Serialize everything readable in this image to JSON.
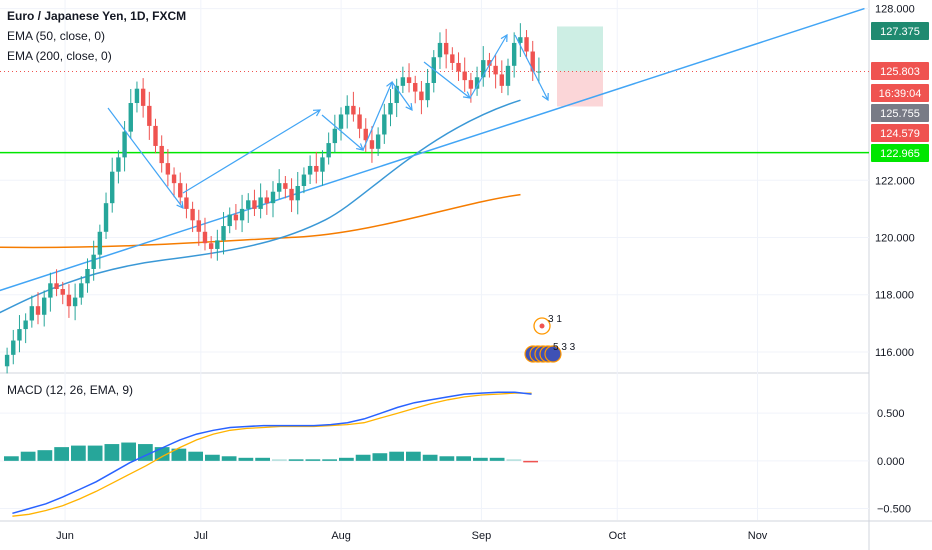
{
  "header": {
    "title": "Euro / Japanese Yen, 1D, FXCM",
    "ema50_label": "EMA (50, close, 0)",
    "ema200_label": "EMA (200, close, 0)",
    "macd_label": "MACD (12, 26, EMA, 9)"
  },
  "colors": {
    "up": "#26a69a",
    "down": "#ef5350",
    "ema50": "#3a98d6",
    "ema200": "#f57c00",
    "trendline": "#42a5f5",
    "support": "#00e600",
    "macd": "#2962ff",
    "signal": "#ffb300"
  },
  "price_axis": {
    "ticks": [
      "128.000",
      "122.000",
      "120.000",
      "118.000",
      "116.000"
    ],
    "badges": [
      {
        "label": "127.375",
        "color": "#1f8a70"
      },
      {
        "label": "125.803",
        "color": "#ef5350"
      },
      {
        "label": "16:39:04",
        "color": "#ef5350"
      },
      {
        "label": "125.755",
        "color": "#787b86"
      },
      {
        "label": "124.579",
        "color": "#ef5350"
      },
      {
        "label": "122.965",
        "color": "#00e600"
      }
    ]
  },
  "macd_axis": {
    "ticks": [
      "0.500",
      "0.000",
      "−0.500"
    ]
  },
  "time_axis": {
    "labels": [
      "Jun",
      "Jul",
      "Aug",
      "Sep",
      "Oct",
      "Nov"
    ]
  },
  "events": {
    "top_count": "3 1",
    "bottom_count": "5 3 3"
  },
  "chart_data": {
    "type": "candlestick",
    "symbol": "Euro / Japanese Yen",
    "interval": "1D",
    "source": "FXCM",
    "x_range": [
      "2021-05-11",
      "2021-11-19"
    ],
    "ylim": [
      115.3,
      128.3
    ],
    "close": [
      115.9,
      116.4,
      116.8,
      117.1,
      117.6,
      117.3,
      117.9,
      118.4,
      118.2,
      118.0,
      117.6,
      117.9,
      118.4,
      118.9,
      119.4,
      120.2,
      121.2,
      122.3,
      122.8,
      123.7,
      124.7,
      125.2,
      124.6,
      123.9,
      123.2,
      122.6,
      122.2,
      121.9,
      121.4,
      121.0,
      120.6,
      120.2,
      119.8,
      119.6,
      119.9,
      120.4,
      120.8,
      120.6,
      121.0,
      121.3,
      121.0,
      121.4,
      121.2,
      121.6,
      121.9,
      121.7,
      121.3,
      121.8,
      122.2,
      122.5,
      122.3,
      122.8,
      123.3,
      123.8,
      124.3,
      124.6,
      124.3,
      123.8,
      123.4,
      123.1,
      123.6,
      124.3,
      124.7,
      125.3,
      125.6,
      125.4,
      125.1,
      124.8,
      125.4,
      126.3,
      126.8,
      126.4,
      126.1,
      125.8,
      125.5,
      125.2,
      125.6,
      126.2,
      126.0,
      125.7,
      125.3,
      126.0,
      126.8,
      127.0,
      126.5,
      125.8,
      125.8
    ],
    "ema50_endpoints": [
      {
        "x": "2021-05-10",
        "y": 117.3
      },
      {
        "x": "2021-09-03",
        "y": 124.8
      }
    ],
    "ema200_endpoints": [
      {
        "x": "2021-05-10",
        "y": 119.8
      },
      {
        "x": "2021-09-03",
        "y": 121.5
      }
    ],
    "trendline": [
      {
        "x": "2021-05-10",
        "y": 118.1
      },
      {
        "x": "2021-11-18",
        "y": 128.0
      }
    ],
    "support_level": 122.965,
    "last_price": 125.803,
    "position": {
      "target": 127.375,
      "entry": 125.803,
      "stop": 124.579
    },
    "macd_ylim": [
      -0.62,
      0.9
    ],
    "macd_line": [
      -0.55,
      -0.5,
      -0.45,
      -0.38,
      -0.3,
      -0.22,
      -0.12,
      -0.02,
      0.06,
      0.14,
      0.22,
      0.28,
      0.32,
      0.35,
      0.36,
      0.37,
      0.37,
      0.37,
      0.37,
      0.38,
      0.4,
      0.44,
      0.5,
      0.56,
      0.61,
      0.64,
      0.67,
      0.7,
      0.71,
      0.72,
      0.72,
      0.7
    ],
    "signal_line": [
      -0.58,
      -0.56,
      -0.52,
      -0.47,
      -0.4,
      -0.32,
      -0.23,
      -0.14,
      -0.05,
      0.05,
      0.14,
      0.22,
      0.28,
      0.32,
      0.34,
      0.35,
      0.36,
      0.36,
      0.36,
      0.37,
      0.38,
      0.4,
      0.45,
      0.5,
      0.55,
      0.6,
      0.64,
      0.67,
      0.69,
      0.7,
      0.71,
      0.71
    ]
  }
}
